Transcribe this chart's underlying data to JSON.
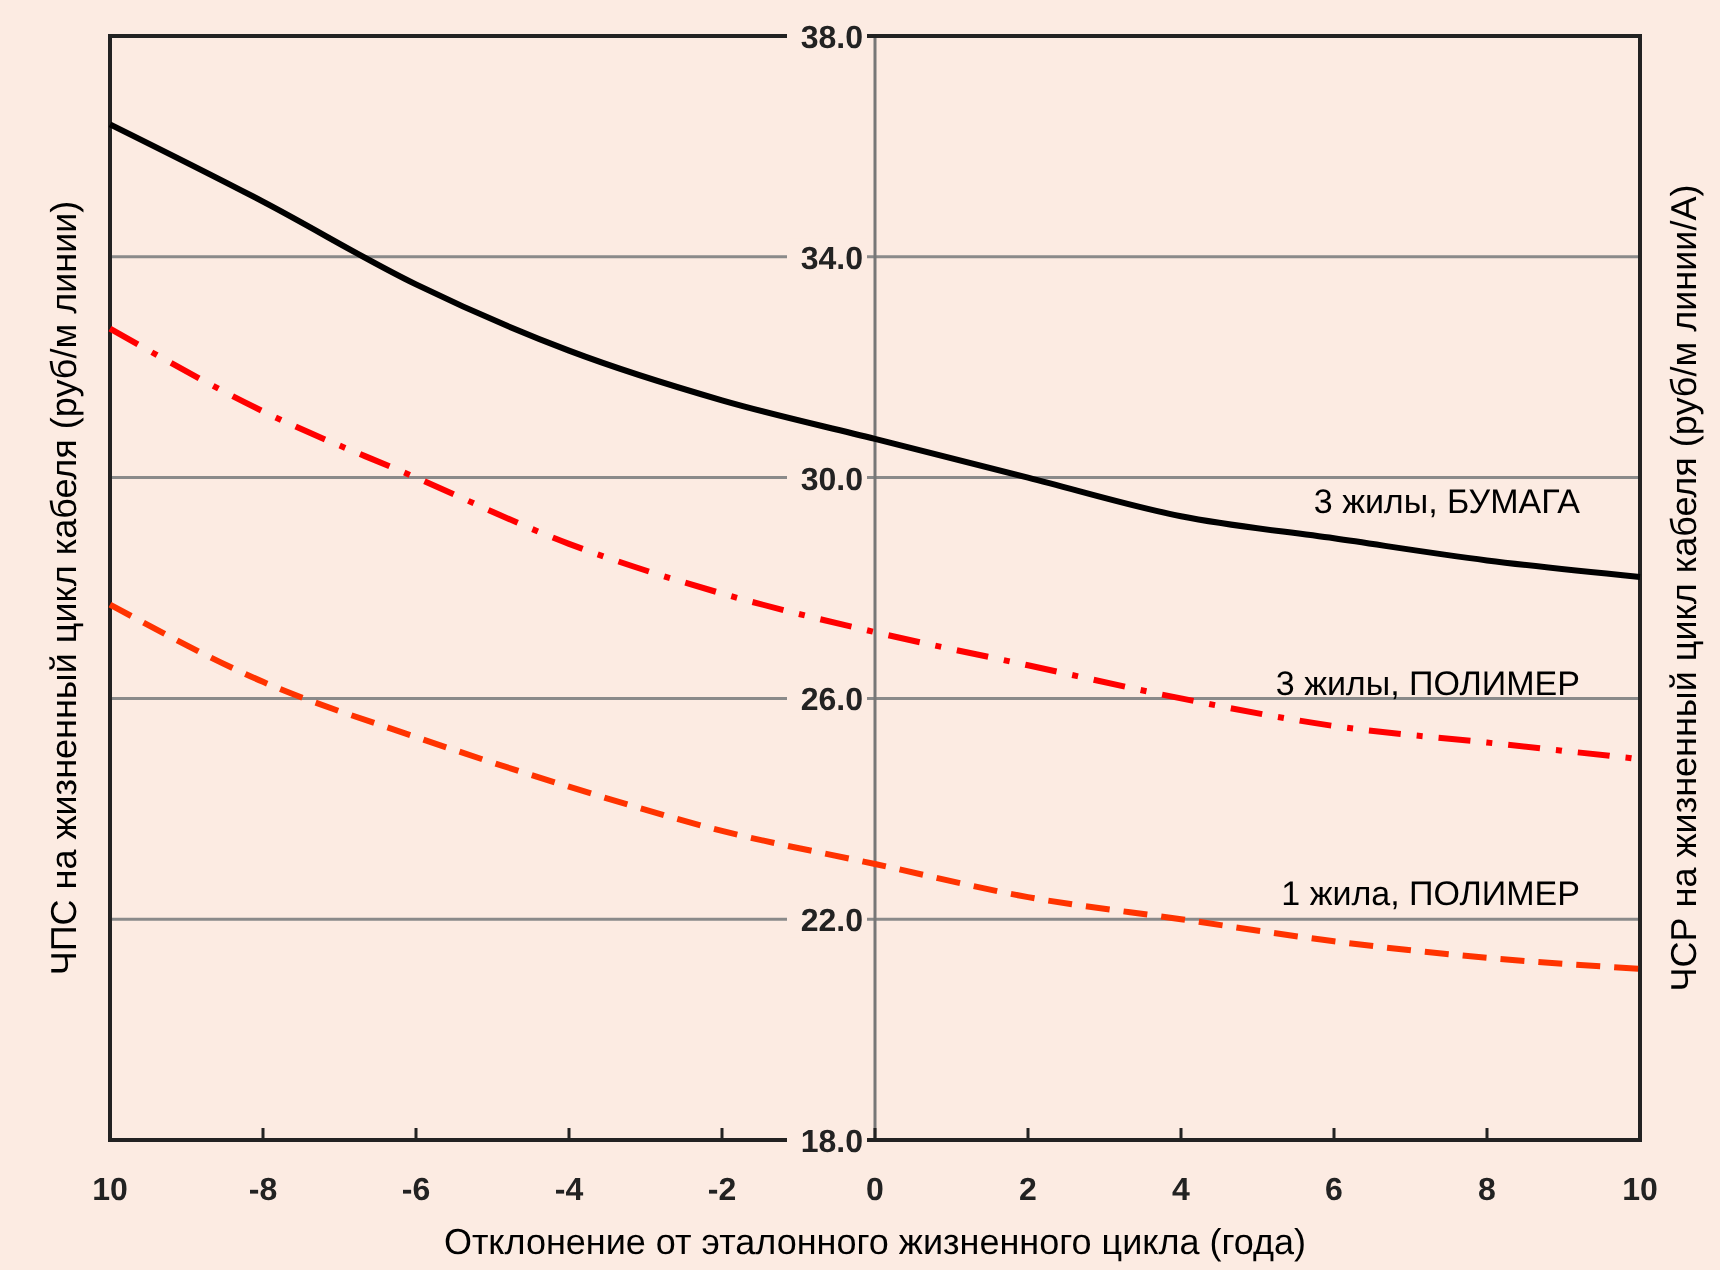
{
  "chart_data": {
    "type": "line",
    "xlabel": "Отклонение от эталонного жизненного цикла (года)",
    "ylabel": "ЧПС на жизненный цикл кабеля (руб/м линии)",
    "y2label": "ЧСР на жизненный цикл кабеля (руб/м линии/А)",
    "x": [
      -10,
      -8,
      -6,
      -4,
      -2,
      0,
      2,
      4,
      6,
      8,
      10
    ],
    "xlim": [
      -10,
      10
    ],
    "xticks": [
      {
        "value": -10,
        "label": "10"
      },
      -8,
      -6,
      -4,
      -2,
      0,
      2,
      4,
      6,
      8,
      10
    ],
    "ylim": [
      18,
      38
    ],
    "yticks": [
      {
        "value": 18,
        "label": "18.0"
      },
      {
        "value": 22,
        "label": "22.0"
      },
      {
        "value": 26,
        "label": "26.0"
      },
      {
        "value": 30,
        "label": "30.0"
      },
      {
        "value": 34,
        "label": "34.0"
      },
      {
        "value": 38,
        "label": "38.0"
      }
    ],
    "grid": "y",
    "series": [
      {
        "name": "3 жилы, БУМАГА",
        "color": "#000000",
        "line_style": "solid",
        "values": [
          36.4,
          35.0,
          33.5,
          32.3,
          31.4,
          30.7,
          30.0,
          29.3,
          28.9,
          28.5,
          28.2
        ]
      },
      {
        "name": "3 жилы, ПОЛИМЕР",
        "color": "#ff0000",
        "line_style": "dashdot",
        "values": [
          32.7,
          31.2,
          30.0,
          28.8,
          27.9,
          27.2,
          26.6,
          26.0,
          25.5,
          25.2,
          24.9
        ]
      },
      {
        "name": "1 жила, ПОЛИМЕР",
        "color": "#ff3300",
        "line_style": "dashed",
        "values": [
          27.7,
          26.3,
          25.3,
          24.4,
          23.6,
          23.0,
          22.4,
          22.0,
          21.6,
          21.3,
          21.1
        ]
      }
    ]
  }
}
